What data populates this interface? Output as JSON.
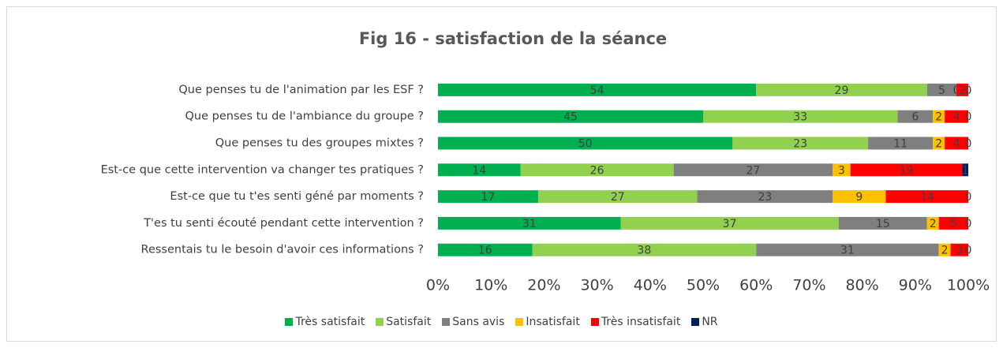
{
  "chart_data": {
    "type": "bar",
    "orientation": "horizontal",
    "stacking": "percent",
    "title": "Fig 16 - satisfaction de la séance",
    "categories": [
      "Que penses tu de l'animation par les ESF ?",
      "Que penses tu de l'ambiance du groupe ?",
      "Que penses tu des groupes mixtes ?",
      "Est-ce que cette intervention va changer tes pratiques ?",
      "Est-ce que tu t'es senti géné par moments ?",
      "T'es tu senti écouté pendant cette intervention ?",
      "Ressentais tu le besoin d'avoir ces informations ?"
    ],
    "series": [
      {
        "name": "Très satisfait",
        "color": "#00b050",
        "values": [
          54,
          45,
          50,
          14,
          17,
          31,
          16
        ]
      },
      {
        "name": "Satisfait",
        "color": "#92d050",
        "values": [
          29,
          33,
          23,
          26,
          27,
          37,
          38
        ]
      },
      {
        "name": "Sans avis",
        "color": "#7f7f7f",
        "values": [
          5,
          6,
          11,
          27,
          23,
          15,
          31
        ]
      },
      {
        "name": "Insatisfait",
        "color": "#ffc000",
        "values": [
          0,
          2,
          2,
          3,
          9,
          2,
          2
        ]
      },
      {
        "name": "Très insatisfait",
        "color": "#ff0000",
        "values": [
          2,
          4,
          4,
          19,
          14,
          5,
          3
        ]
      },
      {
        "name": "NR",
        "color": "#002060",
        "values": [
          0,
          0,
          0,
          1,
          0,
          0,
          0
        ]
      }
    ],
    "xlim": [
      0,
      100
    ],
    "xticks": [
      {
        "value": 0,
        "label": "0%"
      },
      {
        "value": 10,
        "label": "10%"
      },
      {
        "value": 20,
        "label": "20%"
      },
      {
        "value": 30,
        "label": "30%"
      },
      {
        "value": 40,
        "label": "40%"
      },
      {
        "value": 50,
        "label": "50%"
      },
      {
        "value": 60,
        "label": "60%"
      },
      {
        "value": 70,
        "label": "70%"
      },
      {
        "value": 80,
        "label": "80%"
      },
      {
        "value": 90,
        "label": "90%"
      },
      {
        "value": 100,
        "label": "100%"
      }
    ],
    "grid": false,
    "legend": "bottom"
  }
}
